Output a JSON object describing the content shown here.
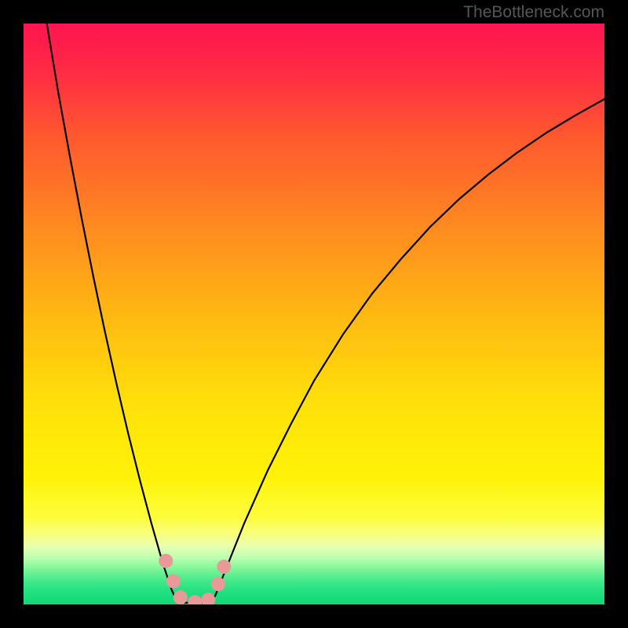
{
  "watermark": {
    "text": "TheBottleneck.com",
    "fontsize": 21,
    "color": "#565656"
  },
  "frame": {
    "outer_size": 800,
    "border_color": "#000000",
    "border_width": 30,
    "plot_size": 740
  },
  "chart": {
    "type": "line",
    "background_gradient": {
      "direction": "vertical",
      "stops": [
        {
          "pct": 0,
          "color": "#ff1450"
        },
        {
          "pct": 8,
          "color": "#ff2a44"
        },
        {
          "pct": 20,
          "color": "#ff5a2e"
        },
        {
          "pct": 35,
          "color": "#ff8a20"
        },
        {
          "pct": 50,
          "color": "#ffb812"
        },
        {
          "pct": 65,
          "color": "#ffe00a"
        },
        {
          "pct": 78,
          "color": "#fff208"
        },
        {
          "pct": 85,
          "color": "#fdfd3d"
        },
        {
          "pct": 88,
          "color": "#f8ff80"
        },
        {
          "pct": 90,
          "color": "#e8ffb0"
        },
        {
          "pct": 92,
          "color": "#baffb0"
        },
        {
          "pct": 94,
          "color": "#7cf596"
        },
        {
          "pct": 96,
          "color": "#40e98a"
        },
        {
          "pct": 98,
          "color": "#20df80"
        },
        {
          "pct": 100,
          "color": "#12d878"
        }
      ]
    },
    "xlim": [
      0,
      100
    ],
    "ylim": [
      0,
      100
    ],
    "curve": {
      "stroke": "#000000",
      "stroke_width": 2.2,
      "points": [
        {
          "x": 4.0,
          "y": 100.0
        },
        {
          "x": 6.0,
          "y": 88.0
        },
        {
          "x": 8.0,
          "y": 77.0
        },
        {
          "x": 10.0,
          "y": 66.5
        },
        {
          "x": 12.0,
          "y": 56.5
        },
        {
          "x": 14.0,
          "y": 47.0
        },
        {
          "x": 16.0,
          "y": 38.0
        },
        {
          "x": 18.0,
          "y": 29.5
        },
        {
          "x": 20.0,
          "y": 21.5
        },
        {
          "x": 22.0,
          "y": 14.0
        },
        {
          "x": 24.0,
          "y": 7.0
        },
        {
          "x": 25.5,
          "y": 2.5
        },
        {
          "x": 26.5,
          "y": 0.3
        },
        {
          "x": 28.0,
          "y": 0.3
        },
        {
          "x": 30.0,
          "y": 0.3
        },
        {
          "x": 32.0,
          "y": 0.3
        },
        {
          "x": 33.0,
          "y": 1.5
        },
        {
          "x": 35.0,
          "y": 6.5
        },
        {
          "x": 38.0,
          "y": 14.0
        },
        {
          "x": 42.0,
          "y": 23.0
        },
        {
          "x": 46.0,
          "y": 31.0
        },
        {
          "x": 50.0,
          "y": 38.5
        },
        {
          "x": 55.0,
          "y": 46.5
        },
        {
          "x": 60.0,
          "y": 53.5
        },
        {
          "x": 65.0,
          "y": 59.5
        },
        {
          "x": 70.0,
          "y": 65.0
        },
        {
          "x": 75.0,
          "y": 69.8
        },
        {
          "x": 80.0,
          "y": 74.0
        },
        {
          "x": 85.0,
          "y": 77.8
        },
        {
          "x": 90.0,
          "y": 81.2
        },
        {
          "x": 95.0,
          "y": 84.2
        },
        {
          "x": 100.0,
          "y": 87.0
        }
      ]
    },
    "markers": {
      "fill": "#ea9999",
      "stroke": "#d17a7a",
      "stroke_width": 0,
      "radius": 9,
      "points": [
        {
          "x": 24.5,
          "y": 7.5
        },
        {
          "x": 25.8,
          "y": 4.0
        },
        {
          "x": 27.0,
          "y": 1.2
        },
        {
          "x": 29.5,
          "y": 0.4
        },
        {
          "x": 31.8,
          "y": 0.8
        },
        {
          "x": 33.5,
          "y": 3.5
        },
        {
          "x": 34.5,
          "y": 6.5
        }
      ]
    }
  }
}
